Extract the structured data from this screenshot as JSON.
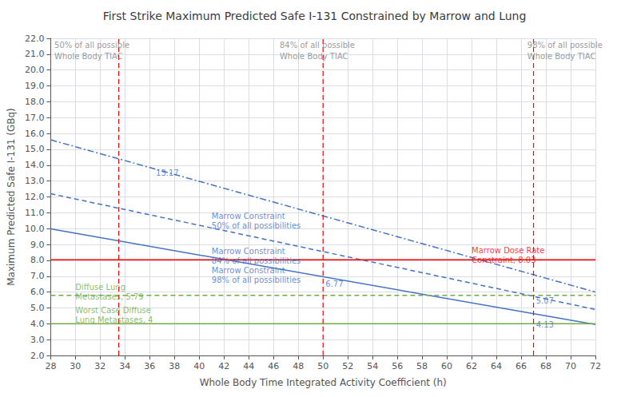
{
  "chart_data": {
    "type": "line",
    "title": "First Strike Maximum Predicted Safe I-131 Constrained by Marrow and Lung",
    "xlabel": "Whole Body Time Integrated Activity Coefficient (h)",
    "ylabel": "Maximum Predicted Safe I-131 (GBq)",
    "xlim": [
      28,
      72
    ],
    "ylim": [
      2.0,
      22.0
    ],
    "xticks": [
      28,
      30,
      32,
      34,
      36,
      38,
      40,
      42,
      44,
      46,
      48,
      50,
      52,
      54,
      56,
      58,
      60,
      62,
      64,
      66,
      68,
      70,
      72
    ],
    "yticks": [
      {
        "value": 2.0,
        "label": "2.0"
      },
      {
        "value": 3.0,
        "label": "3.0"
      },
      {
        "value": 4.0,
        "label": "4.0"
      },
      {
        "value": 5.0,
        "label": "5.0"
      },
      {
        "value": 6.0,
        "label": "6.0"
      },
      {
        "value": 7.0,
        "label": "7.0"
      },
      {
        "value": 8.0,
        "label": "8.0"
      },
      {
        "value": 9.0,
        "label": "9.0"
      },
      {
        "value": 10.0,
        "label": "10.0"
      },
      {
        "value": 11.0,
        "label": "11.0"
      },
      {
        "value": 12.0,
        "label": "12.0"
      },
      {
        "value": 13.0,
        "label": "13.0"
      },
      {
        "value": 14.0,
        "label": "14.0"
      },
      {
        "value": 15.0,
        "label": "15.0"
      },
      {
        "value": 16.0,
        "label": "16.0"
      },
      {
        "value": 17.0,
        "label": "17.0"
      },
      {
        "value": 18.0,
        "label": "18.0"
      },
      {
        "value": 19.0,
        "label": "19.0"
      },
      {
        "value": 20.0,
        "label": "20.0"
      },
      {
        "value": 21.0,
        "label": "21.0"
      },
      {
        "value": 22.0,
        "label": "22.0"
      }
    ],
    "grid": true,
    "series": [
      {
        "x": [
          28,
          72
        ],
        "values": [
          15.6,
          6.0
        ],
        "color": "#4472C4",
        "line_style": "dashdot"
      },
      {
        "x": [
          28,
          72
        ],
        "values": [
          12.2,
          4.9
        ],
        "color": "#4472C4",
        "line_style": "dashed"
      },
      {
        "x": [
          28,
          72
        ],
        "values": [
          9.98,
          3.95
        ],
        "color": "#4472C4",
        "line_style": "solid"
      }
    ],
    "hlines": [
      {
        "y": 8.03,
        "color": "#FF0000",
        "line_style": "solid"
      },
      {
        "y": 5.79,
        "color": "#70AD47",
        "line_style": "dashed"
      },
      {
        "y": 4.0,
        "color": "#70AD47",
        "line_style": "solid"
      }
    ],
    "vlines": [
      {
        "x": 33.5,
        "color": "#FF0000",
        "line_style": "dashed"
      },
      {
        "x": 50.0,
        "color": "#FF0000",
        "line_style": "dashed"
      },
      {
        "x": 67.0,
        "color": "#FF0000",
        "line_style": "dashed"
      }
    ],
    "annotations": [
      {
        "text": "50% of all possible",
        "x": 28.3,
        "y": 21.3,
        "color": "#808080"
      },
      {
        "text": "Whole Body TIAC",
        "x": 28.3,
        "y": 20.6,
        "color": "#808080"
      },
      {
        "text": "84% of all possible",
        "x": 46.5,
        "y": 21.3,
        "color": "#808080"
      },
      {
        "text": "Whole Body TIAC",
        "x": 46.5,
        "y": 20.6,
        "color": "#808080"
      },
      {
        "text": "98% of all possible",
        "x": 66.5,
        "y": 21.3,
        "color": "#808080"
      },
      {
        "text": "Whole Body TIAC",
        "x": 66.5,
        "y": 20.6,
        "color": "#808080"
      },
      {
        "text": "Marrow Constraint",
        "x": 41.0,
        "y": 10.55,
        "color": "#4472C4"
      },
      {
        "text": "50% of all possibilities",
        "x": 41.0,
        "y": 9.95,
        "color": "#4472C4"
      },
      {
        "text": "Marrow Constraint",
        "x": 41.0,
        "y": 8.3,
        "color": "#4472C4"
      },
      {
        "text": "84% of all possibilities",
        "x": 41.0,
        "y": 7.7,
        "color": "#4472C4"
      },
      {
        "text": "Marrow Constraint",
        "x": 41.0,
        "y": 7.1,
        "color": "#4472C4"
      },
      {
        "text": "98% of all possibilities",
        "x": 41.0,
        "y": 6.5,
        "color": "#4472C4"
      },
      {
        "text": "Marrow Dose Rate",
        "x": 62.0,
        "y": 8.35,
        "color": "#FF0000"
      },
      {
        "text": "Constraint, 8.03",
        "x": 62.0,
        "y": 7.75,
        "color": "#FF0000"
      },
      {
        "text": "Diffuse Lung",
        "x": 30.0,
        "y": 6.05,
        "color": "#70AD47"
      },
      {
        "text": "Metastases, 5.79",
        "x": 30.0,
        "y": 5.45,
        "color": "#70AD47"
      },
      {
        "text": "Worst Case Diffuse",
        "x": 30.0,
        "y": 4.6,
        "color": "#70AD47"
      },
      {
        "text": "Lung Metastases, 4",
        "x": 30.0,
        "y": 4.0,
        "color": "#70AD47"
      },
      {
        "text": "13.17",
        "x": 36.5,
        "y": 13.27,
        "color": "#4472C4"
      },
      {
        "text": "6.77",
        "x": 50.2,
        "y": 6.27,
        "color": "#4472C4"
      },
      {
        "text": "5.07",
        "x": 67.2,
        "y": 5.22,
        "color": "#4472C4"
      },
      {
        "text": "4.13",
        "x": 67.2,
        "y": 3.68,
        "color": "#4472C4"
      }
    ]
  }
}
